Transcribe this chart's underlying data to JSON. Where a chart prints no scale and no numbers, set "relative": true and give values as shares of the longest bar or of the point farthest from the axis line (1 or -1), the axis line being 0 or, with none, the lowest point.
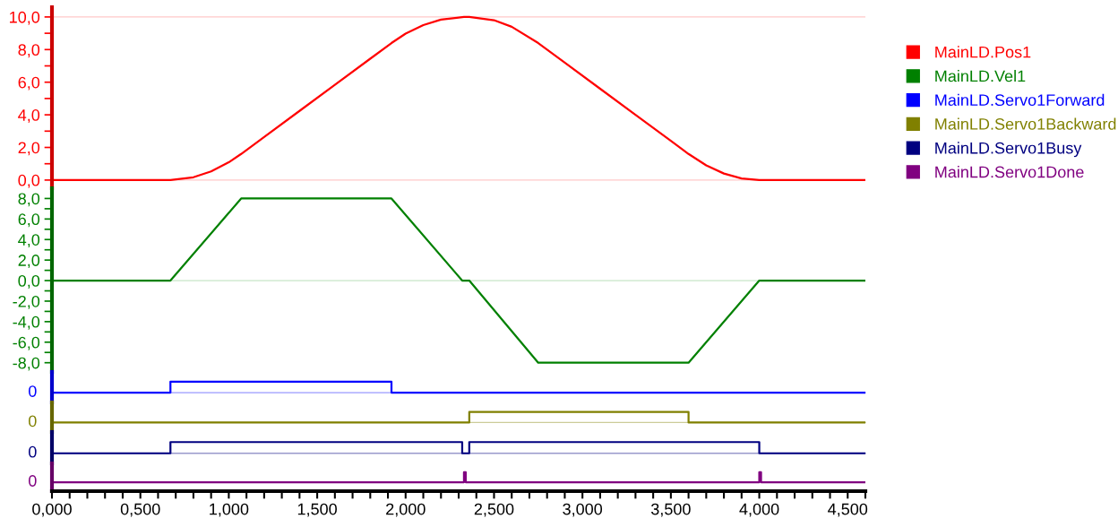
{
  "chart_data": [
    {
      "type": "line",
      "legend": "right",
      "tick_labels": "y",
      "xlim": [
        0,
        4.6
      ],
      "ylim": [
        -0.5,
        10.6
      ],
      "yticks": [
        {
          "value": 0,
          "label": "0,0"
        },
        {
          "value": 1,
          "label": null
        },
        {
          "value": 2,
          "label": "2,0"
        },
        {
          "value": 3,
          "label": null
        },
        {
          "value": 4,
          "label": "4,0"
        },
        {
          "value": 5,
          "label": null
        },
        {
          "value": 6,
          "label": "6,0"
        },
        {
          "value": 7,
          "label": null
        },
        {
          "value": 8,
          "label": "8,0"
        },
        {
          "value": 9,
          "label": null
        },
        {
          "value": 10,
          "label": "10,0"
        }
      ],
      "ref_lines": [
        {
          "axis": "y",
          "value": 0,
          "color": "#ffc8c8"
        },
        {
          "axis": "y",
          "value": 10,
          "color": "#ffc8c8"
        }
      ],
      "series": [
        {
          "name": "MainLD.Pos1",
          "color": "#ff0000",
          "x": [
            0,
            0.67,
            0.8,
            0.9,
            1.0,
            1.07,
            1.2,
            1.4,
            1.6,
            1.8,
            1.92,
            2.0,
            2.1,
            2.2,
            2.33,
            2.36,
            2.5,
            2.6,
            2.75,
            2.9,
            3.1,
            3.3,
            3.5,
            3.6,
            3.7,
            3.8,
            3.9,
            4.0,
            4.6
          ],
          "values": [
            0,
            0,
            0.17,
            0.53,
            1.09,
            1.6,
            2.64,
            4.24,
            5.84,
            7.44,
            8.4,
            8.98,
            9.5,
            9.84,
            10.0,
            10.0,
            9.8,
            9.4,
            8.4,
            7.2,
            5.6,
            4.0,
            2.4,
            1.6,
            0.9,
            0.4,
            0.1,
            0,
            0
          ]
        }
      ]
    },
    {
      "type": "line",
      "legend": "right",
      "tick_labels": "y",
      "xlim": [
        0,
        4.6
      ],
      "ylim": [
        -8.9,
        9.0
      ],
      "yticks": [
        {
          "value": -8,
          "label": "-8,0"
        },
        {
          "value": -7,
          "label": null
        },
        {
          "value": -6,
          "label": "-6,0"
        },
        {
          "value": -5,
          "label": null
        },
        {
          "value": -4,
          "label": "-4,0"
        },
        {
          "value": -3,
          "label": null
        },
        {
          "value": -2,
          "label": "-2,0"
        },
        {
          "value": -1,
          "label": null
        },
        {
          "value": 0,
          "label": "0,0"
        },
        {
          "value": 1,
          "label": null
        },
        {
          "value": 2,
          "label": "2,0"
        },
        {
          "value": 3,
          "label": null
        },
        {
          "value": 4,
          "label": "4,0"
        },
        {
          "value": 5,
          "label": null
        },
        {
          "value": 6,
          "label": "6,0"
        },
        {
          "value": 7,
          "label": null
        },
        {
          "value": 8,
          "label": "8,0"
        }
      ],
      "ref_lines": [
        {
          "axis": "y",
          "value": 0,
          "color": "#c8e6c8"
        }
      ],
      "series": [
        {
          "name": "MainLD.Vel1",
          "color": "#008000",
          "x": [
            0,
            0.67,
            1.07,
            1.92,
            2.32,
            2.36,
            2.75,
            3.6,
            4.0,
            4.6
          ],
          "values": [
            0,
            0,
            8,
            8,
            0,
            0,
            -8,
            -8,
            0,
            0
          ]
        }
      ]
    },
    {
      "type": "step",
      "legend": "right",
      "tick_labels": "y",
      "xlim": [
        0,
        4.6
      ],
      "relative": true,
      "annotations": [
        "0"
      ],
      "series": [
        {
          "name": "MainLD.Servo1Forward",
          "color": "#0000ff",
          "x": [
            0,
            0.67,
            1.92,
            4.6
          ],
          "values": [
            0,
            1,
            0,
            0
          ]
        }
      ]
    },
    {
      "type": "step",
      "legend": "right",
      "tick_labels": "y",
      "xlim": [
        0,
        4.6
      ],
      "relative": true,
      "annotations": [
        "0"
      ],
      "series": [
        {
          "name": "MainLD.Servo1Backward",
          "color": "#808000",
          "x": [
            0,
            2.36,
            3.6,
            4.6
          ],
          "values": [
            0,
            1,
            0,
            0
          ]
        }
      ]
    },
    {
      "type": "step",
      "legend": "right",
      "tick_labels": "y",
      "xlim": [
        0,
        4.6
      ],
      "relative": true,
      "annotations": [
        "0"
      ],
      "series": [
        {
          "name": "MainLD.Servo1Busy",
          "color": "#000080",
          "x": [
            0,
            0.67,
            2.32,
            2.36,
            4.0,
            4.6
          ],
          "values": [
            0,
            1,
            0,
            1,
            0,
            0
          ]
        }
      ]
    },
    {
      "type": "step",
      "legend": "right",
      "tick_labels": "x",
      "xlim": [
        0,
        4.6
      ],
      "relative": true,
      "annotations": [
        "0"
      ],
      "xticks": [
        {
          "value": 0,
          "label": "0,000"
        },
        {
          "value": 0.1,
          "label": null
        },
        {
          "value": 0.2,
          "label": null
        },
        {
          "value": 0.3,
          "label": null
        },
        {
          "value": 0.4,
          "label": null
        },
        {
          "value": 0.5,
          "label": "0,500"
        },
        {
          "value": 0.6,
          "label": null
        },
        {
          "value": 0.7,
          "label": null
        },
        {
          "value": 0.8,
          "label": null
        },
        {
          "value": 0.9,
          "label": null
        },
        {
          "value": 1.0,
          "label": "1,000"
        },
        {
          "value": 1.1,
          "label": null
        },
        {
          "value": 1.2,
          "label": null
        },
        {
          "value": 1.3,
          "label": null
        },
        {
          "value": 1.4,
          "label": null
        },
        {
          "value": 1.5,
          "label": "1,500"
        },
        {
          "value": 1.6,
          "label": null
        },
        {
          "value": 1.7,
          "label": null
        },
        {
          "value": 1.8,
          "label": null
        },
        {
          "value": 1.9,
          "label": null
        },
        {
          "value": 2.0,
          "label": "2,000"
        },
        {
          "value": 2.1,
          "label": null
        },
        {
          "value": 2.2,
          "label": null
        },
        {
          "value": 2.3,
          "label": null
        },
        {
          "value": 2.4,
          "label": null
        },
        {
          "value": 2.5,
          "label": "2,500"
        },
        {
          "value": 2.6,
          "label": null
        },
        {
          "value": 2.7,
          "label": null
        },
        {
          "value": 2.8,
          "label": null
        },
        {
          "value": 2.9,
          "label": null
        },
        {
          "value": 3.0,
          "label": "3,000"
        },
        {
          "value": 3.1,
          "label": null
        },
        {
          "value": 3.2,
          "label": null
        },
        {
          "value": 3.3,
          "label": null
        },
        {
          "value": 3.4,
          "label": null
        },
        {
          "value": 3.5,
          "label": "3,500"
        },
        {
          "value": 3.6,
          "label": null
        },
        {
          "value": 3.7,
          "label": null
        },
        {
          "value": 3.8,
          "label": null
        },
        {
          "value": 3.9,
          "label": null
        },
        {
          "value": 4.0,
          "label": "4,000"
        },
        {
          "value": 4.1,
          "label": null
        },
        {
          "value": 4.2,
          "label": null
        },
        {
          "value": 4.3,
          "label": null
        },
        {
          "value": 4.4,
          "label": null
        },
        {
          "value": 4.5,
          "label": "4,500"
        },
        {
          "value": 4.6,
          "label": null
        }
      ],
      "series": [
        {
          "name": "MainLD.Servo1Done",
          "color": "#800080",
          "x": [
            0,
            2.33,
            2.34,
            4.0,
            4.01,
            4.6
          ],
          "values": [
            0,
            1,
            0,
            1,
            0,
            0
          ]
        }
      ]
    }
  ]
}
